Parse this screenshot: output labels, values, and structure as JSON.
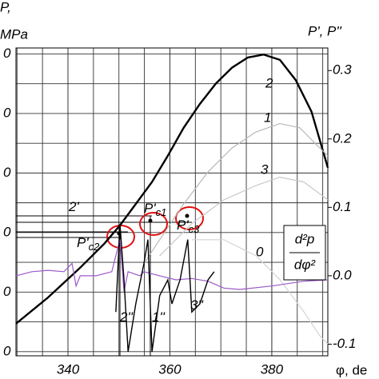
{
  "chart_data": {
    "type": "line",
    "y_axis_title_lines": [
      "P,",
      "MPa"
    ],
    "y2_axis_title": "P', P''",
    "x_axis_title": "φ, de",
    "xlim": [
      329.8,
      391.0
    ],
    "xticks": [
      340,
      360,
      380
    ],
    "ylim": [
      -0.07,
      5.1
    ],
    "yticks": [
      {
        "value": 0,
        "label": "0"
      },
      {
        "value": 1,
        "label": "0"
      },
      {
        "value": 2,
        "label": "0"
      },
      {
        "value": 3,
        "label": "0"
      },
      {
        "value": 4,
        "label": "0"
      },
      {
        "value": 5,
        "label": "0"
      }
    ],
    "y2lim": [
      -0.117,
      0.333
    ],
    "y2ticks": [
      {
        "value": 0.3,
        "label": "0.3"
      },
      {
        "value": 0.2,
        "label": "0.2"
      },
      {
        "value": 0.1,
        "label": "0.1"
      },
      {
        "value": 0.0,
        "label": "0.0"
      },
      {
        "value": -0.1,
        "label": "-0.1"
      }
    ],
    "grid": true,
    "series": [
      {
        "name": "2",
        "color": "#000000",
        "axis": "y",
        "x": [
          329.8,
          336.1,
          342.4,
          347.1,
          350.2,
          353.3,
          356.5,
          359.6,
          362.7,
          365.9,
          369.0,
          372.2,
          375.3,
          378.4,
          381.6,
          384.7,
          387.8,
          391.0
        ],
        "values": [
          0.47,
          0.91,
          1.41,
          1.81,
          2.12,
          2.48,
          2.85,
          3.29,
          3.76,
          4.16,
          4.5,
          4.77,
          4.94,
          4.99,
          4.9,
          4.56,
          4.03,
          3.09
        ]
      },
      {
        "name": "1",
        "color": "#b8b8b8",
        "axis": "y",
        "x": [
          354.9,
          358.0,
          362.7,
          367.5,
          372.2,
          376.9,
          381.6,
          385.5,
          388.6,
          391.0
        ],
        "values": [
          1.48,
          1.88,
          2.48,
          3.02,
          3.42,
          3.69,
          3.83,
          3.76,
          3.49,
          3.29
        ]
      },
      {
        "name": "3",
        "color": "#c8c8c8",
        "axis": "y",
        "x": [
          358.0,
          364.3,
          370.6,
          376.9,
          381.6,
          386.3,
          391.0
        ],
        "values": [
          1.61,
          2.15,
          2.55,
          2.79,
          2.93,
          2.85,
          2.55
        ]
      },
      {
        "name": "0",
        "color": "#d4d4d4",
        "axis": "y",
        "x": [
          364.3,
          370.6,
          376.9,
          381.6,
          386.3,
          389.4,
          391.0
        ],
        "values": [
          1.88,
          1.88,
          1.61,
          1.21,
          0.67,
          0.27,
          0.13
        ]
      },
      {
        "color": "#9b59c8",
        "axis": "y2",
        "x": [
          329.8,
          332.9,
          336.1,
          339.2,
          340.8,
          341.6,
          342.4,
          345.5,
          348.6,
          350.2,
          351.0,
          351.8,
          354.1,
          354.9,
          358.0,
          361.2,
          364.3,
          367.5,
          370.6,
          373.7,
          380.0,
          386.3,
          391.0
        ],
        "values": [
          0.0,
          0.006,
          0.008,
          0.006,
          0.018,
          -0.015,
          0.0,
          0.0,
          0.006,
          0.053,
          -0.023,
          0.006,
          0.0,
          0.006,
          0.0,
          -0.006,
          -0.004,
          -0.008,
          -0.018,
          -0.02,
          -0.015,
          -0.008,
          -0.006
        ]
      },
      {
        "color": "#000000",
        "axis": "y2",
        "x": [
          349.4,
          350.2,
          351.0,
          351.8,
          353.3,
          354.9,
          355.7,
          356.5,
          358.0,
          359.6,
          360.4,
          362.0,
          363.5,
          364.3,
          365.9,
          367.5,
          368.7
        ],
        "values": [
          -0.053,
          0.076,
          -0.006,
          -0.111,
          -0.041,
          0.018,
          0.053,
          -0.111,
          -0.029,
          -0.006,
          -0.041,
          -0.006,
          0.053,
          -0.053,
          -0.041,
          -0.006,
          0.006
        ]
      }
    ],
    "annotations": [
      {
        "text": "2'"
      },
      {
        "text": "P'",
        "sub": "c2"
      },
      {
        "text": "P'",
        "sub": "c1"
      },
      {
        "text": "P'",
        "sub": "c3"
      },
      {
        "text": "2''"
      },
      {
        "text": "1''"
      },
      {
        "text": "3''"
      }
    ],
    "formula": {
      "numerator": "d²p",
      "denominator": "dφ²"
    }
  }
}
